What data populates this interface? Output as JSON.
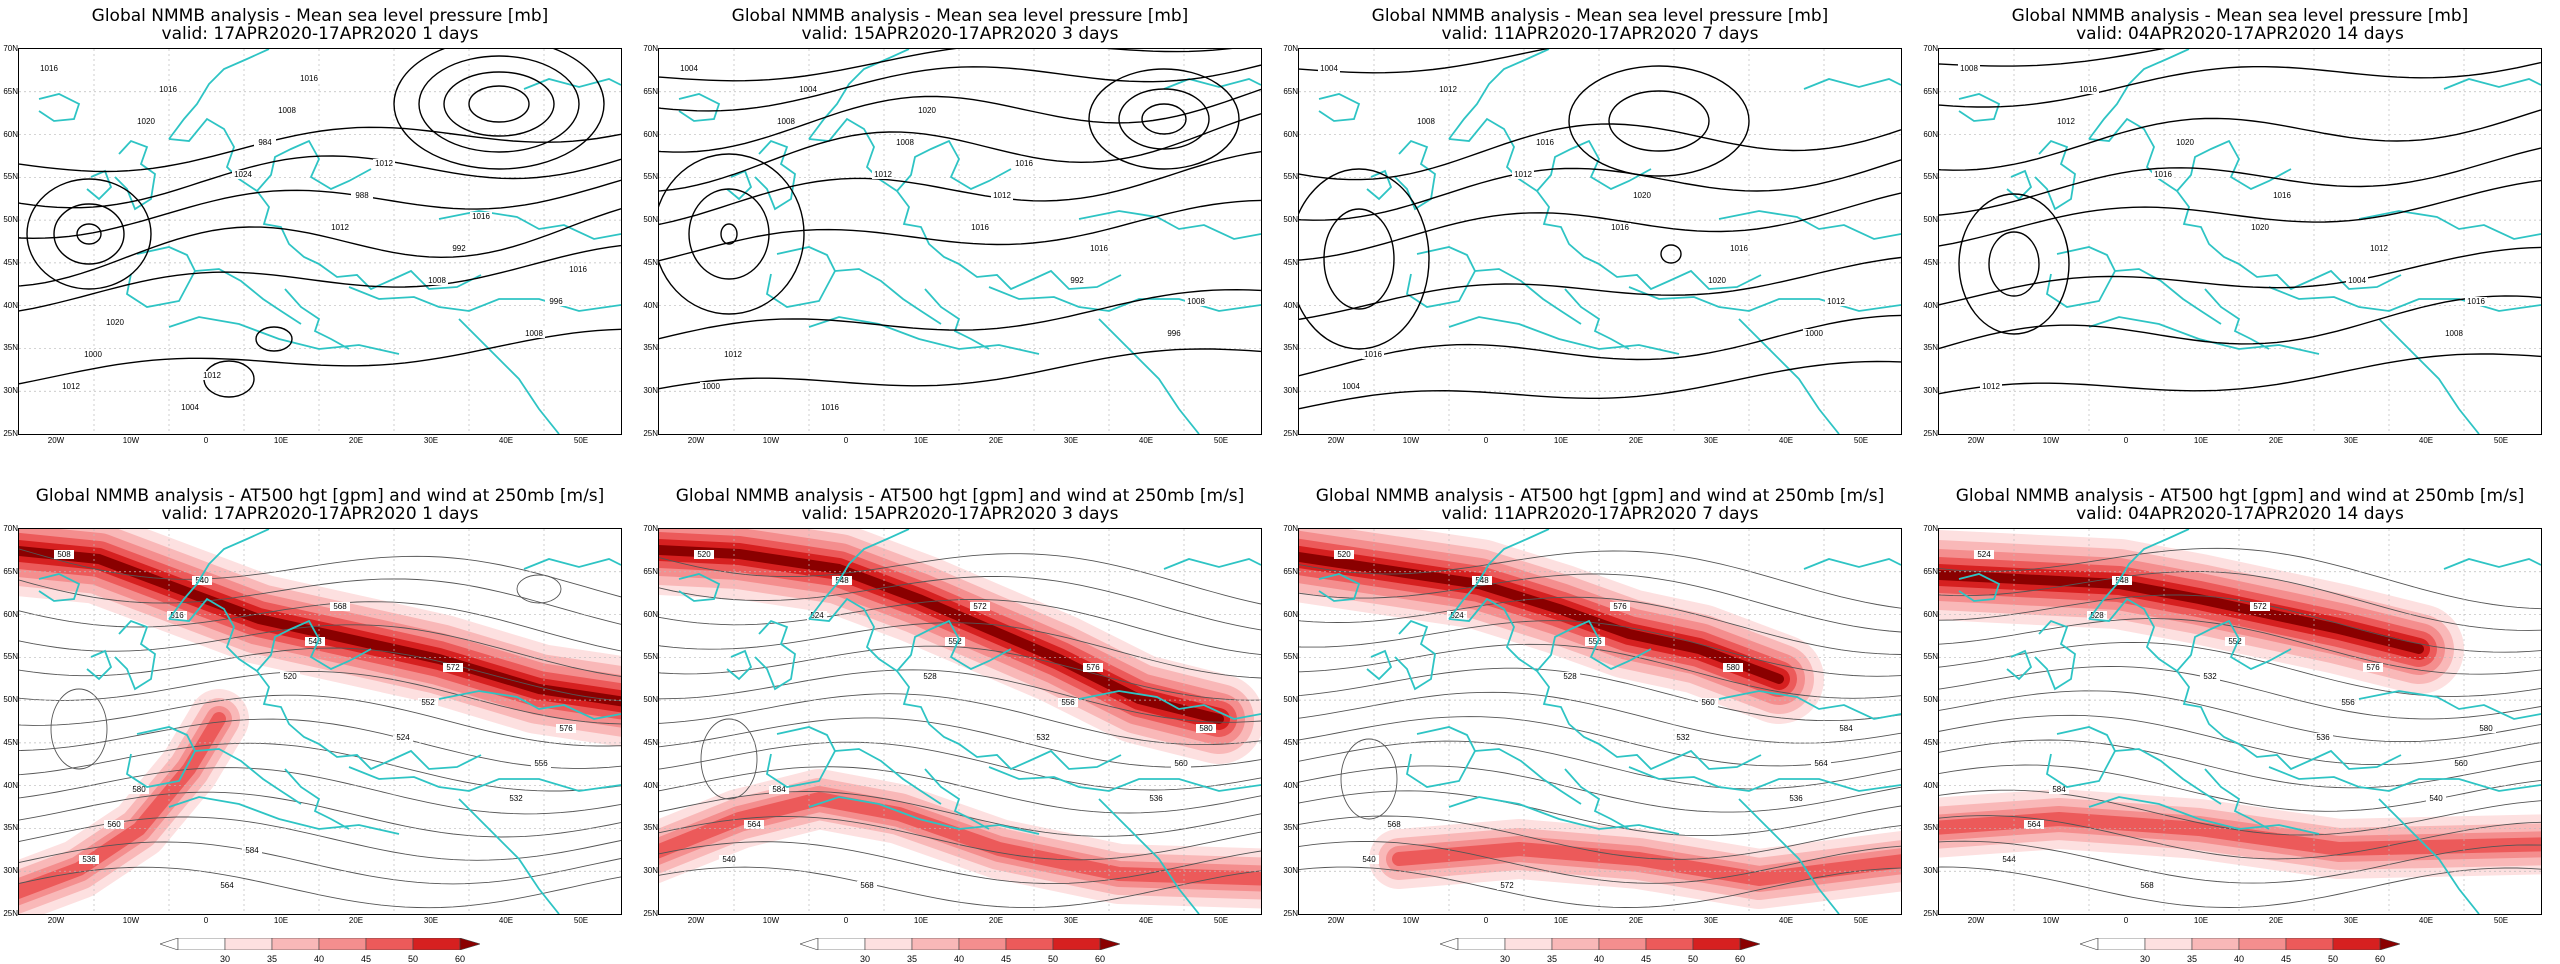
{
  "top_title": "Global NMMB analysis - Mean sea level pressure [mb]",
  "bottom_title": "Global NMMB analysis - AT500 hgt [gpm] and wind at 250mb [m/s]",
  "top_valid": [
    "valid: 17APR2020-17APR2020  1 days",
    "valid: 15APR2020-17APR2020  3 days",
    "valid: 11APR2020-17APR2020  7 days",
    "valid: 04APR2020-17APR2020  14 days"
  ],
  "bottom_valid": [
    "valid: 17APR2020-17APR2020  1 days",
    "valid: 15APR2020-17APR2020  3 days",
    "valid: 11APR2020-17APR2020  7 days",
    "valid: 04APR2020-17APR2020  14 days"
  ],
  "lat_labels": [
    "70N",
    "65N",
    "60N",
    "55N",
    "50N",
    "45N",
    "40N",
    "35N",
    "30N",
    "25N"
  ],
  "lon_labels": [
    "20W",
    "10W",
    "0",
    "10E",
    "20E",
    "30E",
    "40E",
    "50E"
  ],
  "colorbar_labels": [
    "30",
    "35",
    "40",
    "45",
    "50",
    "60"
  ],
  "colors": {
    "coast": "#2ec4c4",
    "isobar": "#000000",
    "height_contour": "#555555",
    "wind_shades": [
      "#fde0e0",
      "#f9b8b8",
      "#f48e8e",
      "#ec5a5a",
      "#d62020",
      "#8a0000"
    ]
  },
  "mslp_labels": [
    [
      "1016",
      "1020",
      "1024",
      "1012",
      "1008",
      "1008",
      "1012",
      "1016",
      "984",
      "988",
      "992",
      "996",
      "1000",
      "1004",
      "1008",
      "1012",
      "1016",
      "1016",
      "1020",
      "1012",
      "1016"
    ],
    [
      "1004",
      "1008",
      "1012",
      "1016",
      "992",
      "996",
      "1000",
      "1004",
      "1008",
      "1012",
      "1016",
      "1008",
      "1012",
      "1016",
      "1020",
      "1016"
    ],
    [
      "1004",
      "1008",
      "1012",
      "1016",
      "1020",
      "1000",
      "1004",
      "1012",
      "1016",
      "1020",
      "1016",
      "1012",
      "1016"
    ],
    [
      "1008",
      "1012",
      "1016",
      "1020",
      "1004",
      "1008",
      "1012",
      "1016",
      "1020",
      "1016",
      "1012",
      "1016"
    ]
  ],
  "z500_labels": [
    [
      "508",
      "516",
      "520",
      "524",
      "532",
      "536",
      "540",
      "548",
      "552",
      "556",
      "560",
      "564",
      "568",
      "572",
      "576",
      "580",
      "584"
    ],
    [
      "520",
      "524",
      "528",
      "532",
      "536",
      "540",
      "548",
      "552",
      "556",
      "560",
      "564",
      "568",
      "572",
      "576",
      "580",
      "584"
    ],
    [
      "520",
      "524",
      "528",
      "532",
      "536",
      "540",
      "548",
      "556",
      "560",
      "564",
      "568",
      "572",
      "576",
      "580",
      "584"
    ],
    [
      "524",
      "528",
      "532",
      "536",
      "540",
      "544",
      "548",
      "552",
      "556",
      "560",
      "564",
      "568",
      "572",
      "576",
      "580",
      "584"
    ]
  ]
}
